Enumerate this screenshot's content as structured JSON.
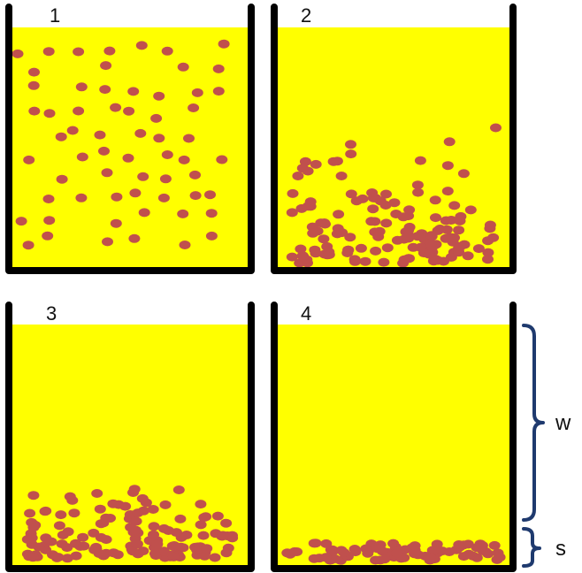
{
  "panels": [
    {
      "number": "1",
      "state": "particles suspended evenly throughout liquid"
    },
    {
      "number": "2",
      "state": "particles partially settled, denser toward bottom"
    },
    {
      "number": "3",
      "state": "most particles settled near bottom"
    },
    {
      "number": "4",
      "state": "all particles settled in bottom layer"
    }
  ],
  "brackets": {
    "upper_label": "w",
    "lower_label": "s"
  },
  "colors": {
    "liquid": "#ffff00",
    "particle": "#c0504d",
    "container_wall": "#000000",
    "bracket": "#1f3a6e"
  }
}
